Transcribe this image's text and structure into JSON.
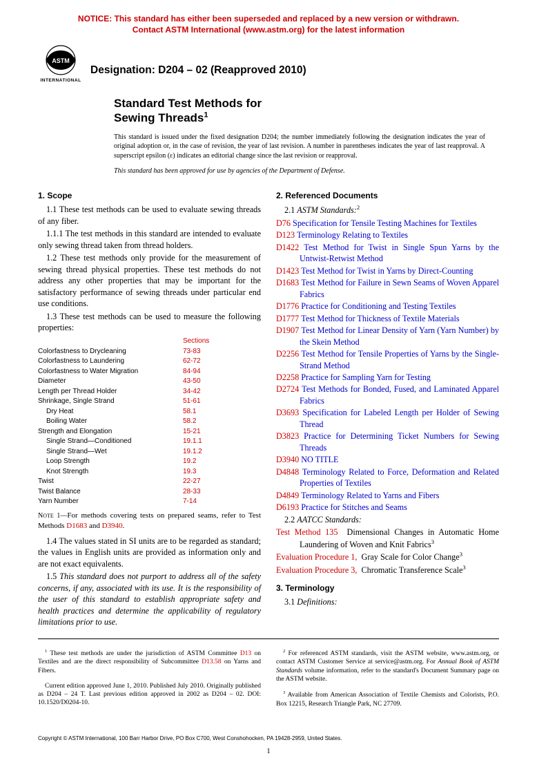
{
  "notice": {
    "line1": "NOTICE: This standard has either been superseded and replaced by a new version or withdrawn.",
    "line2": "Contact ASTM International (www.astm.org) for the latest information"
  },
  "designation": "Designation: D204 – 02 (Reapproved 2010)",
  "title_line1": "Standard Test Methods for",
  "title_line2": "Sewing Threads",
  "title_sup": "1",
  "issued": "This standard is issued under the fixed designation D204; the number immediately following the designation indicates the year of original adoption or, in the case of revision, the year of last revision. A number in parentheses indicates the year of last reapproval. A superscript epsilon (ε) indicates an editorial change since the last revision or reapproval.",
  "approval": "This standard has been approved for use by agencies of the Department of Defense.",
  "s1": {
    "head": "1. Scope",
    "p11": "1.1 These test methods can be used to evaluate sewing threads of any fiber.",
    "p111": "1.1.1 The test methods in this standard are intended to evaluate only sewing thread taken from thread holders.",
    "p12": "1.2 These test methods only provide for the measurement of sewing thread physical properties. These test methods do not address any other properties that may be important for the satisfactory performance of sewing threads under particular end use conditions.",
    "p13": "1.3 These test methods can be used to measure the following properties:",
    "sections_label": "Sections",
    "props": [
      {
        "name": "Colorfastness to Drycleaning",
        "sec": "73-83",
        "ind": 0
      },
      {
        "name": "Colorfastness to Laundering",
        "sec": "62-72",
        "ind": 0
      },
      {
        "name": "Colorfastness to Water Migration",
        "sec": "84-94",
        "ind": 0
      },
      {
        "name": "Diameter",
        "sec": "43-50",
        "ind": 0
      },
      {
        "name": "Length per Thread Holder",
        "sec": "34-42",
        "ind": 0
      },
      {
        "name": "Shrinkage, Single Strand",
        "sec": "51-61",
        "ind": 0
      },
      {
        "name": "Dry Heat",
        "sec": "58.1",
        "ind": 1
      },
      {
        "name": "Boiling Water",
        "sec": "58.2",
        "ind": 1
      },
      {
        "name": "Strength and Elongation",
        "sec": "15-21",
        "ind": 0
      },
      {
        "name": "Single Strand—Conditioned",
        "sec": "19.1.1",
        "ind": 1
      },
      {
        "name": "Single Strand—Wet",
        "sec": "19.1.2",
        "ind": 1
      },
      {
        "name": "Loop Strength",
        "sec": "19.2",
        "ind": 1
      },
      {
        "name": "Knot Strength",
        "sec": "19.3",
        "ind": 1
      },
      {
        "name": "Twist",
        "sec": "22-27",
        "ind": 0
      },
      {
        "name": "Twist Balance",
        "sec": "28-33",
        "ind": 0
      },
      {
        "name": "Yarn Number",
        "sec": "7-14",
        "ind": 0
      }
    ],
    "note1_lead": "Note 1—",
    "note1_a": "For methods covering tests on prepared seams, refer to Test Methods ",
    "note1_l1": "D1683",
    "note1_and": " and ",
    "note1_l2": "D3940",
    "note1_end": ".",
    "p14": "1.4 The values stated in SI units are to be regarded as standard; the values in English units are provided as information only and are not exact equivalents.",
    "p15": "1.5 This standard does not purport to address all of the safety concerns, if any, associated with its use. It is the responsibility of the user of this standard to establish appropriate safety and health practices and determine the applicability of regulatory limitations prior to use."
  },
  "s2": {
    "head": "2. Referenced Documents",
    "astm_label_num": "2.1 ",
    "astm_label": "ASTM Standards:",
    "astm_sup": "2",
    "refs": [
      {
        "c": "D76",
        "t": "Specification for Tensile Testing Machines for Textiles"
      },
      {
        "c": "D123",
        "t": "Terminology Relating to Textiles"
      },
      {
        "c": "D1422",
        "t": "Test Method for Twist in Single Spun Yarns by the Untwist-Retwist Method"
      },
      {
        "c": "D1423",
        "t": "Test Method for Twist in Yarns by Direct-Counting"
      },
      {
        "c": "D1683",
        "t": "Test Method for Failure in Sewn Seams of Woven Apparel Fabrics"
      },
      {
        "c": "D1776",
        "t": "Practice for Conditioning and Testing Textiles"
      },
      {
        "c": "D1777",
        "t": "Test Method for Thickness of Textile Materials"
      },
      {
        "c": "D1907",
        "t": "Test Method for Linear Density of Yarn (Yarn Number) by the Skein Method"
      },
      {
        "c": "D2256",
        "t": "Test Method for Tensile Properties of Yarns by the Single-Strand Method"
      },
      {
        "c": "D2258",
        "t": "Practice for Sampling Yarn for Testing"
      },
      {
        "c": "D2724",
        "t": "Test Methods for Bonded, Fused, and Laminated Apparel Fabrics"
      },
      {
        "c": "D3693",
        "t": "Specification for Labeled Length per Holder of Sewing Thread"
      },
      {
        "c": "D3823",
        "t": "Practice for Determining Ticket Numbers for Sewing Threads"
      },
      {
        "c": "D3940",
        "t": "NO TITLE"
      },
      {
        "c": "D4848",
        "t": "Terminology Related to Force, Deformation and Related Properties of Textiles"
      },
      {
        "c": "D4849",
        "t": "Terminology Related to Yarns and Fibers"
      },
      {
        "c": "D6193",
        "t": "Practice for Stitches and Seams"
      }
    ],
    "aatcc_label_num": "2.2 ",
    "aatcc_label": "AATCC Standards:",
    "aatcc": [
      {
        "c": "Test Method 135",
        "t": "Dimensional Changes in Automatic Home Laundering of Woven and Knit Fabrics",
        "sup": "3"
      },
      {
        "c": "Evaluation Procedure 1,",
        "t": "Gray Scale for Color Change",
        "sup": "3"
      },
      {
        "c": "Evaluation Procedure 3,",
        "t": "Chromatic Transference Scale",
        "sup": "3"
      }
    ]
  },
  "s3": {
    "head": "3. Terminology",
    "p31_num": "3.1 ",
    "p31": "Definitions:"
  },
  "fn": {
    "f1a": " These test methods are under the jurisdiction of ASTM Committee ",
    "f1_l1": "D13",
    "f1b": " on Textiles and are the direct responsibility of Subcommittee ",
    "f1_l2": "D13.58",
    "f1c": " on Yarns and Fibers.",
    "f1d": "Current edition approved June 1, 2010. Published July 2010. Originally published as D204 – 24 T. Last previous edition approved in 2002 as D204 – 02. DOI: 10.1520/D0204-10.",
    "f2a": " For referenced ASTM standards, visit the ASTM website, www.astm.org, or contact ASTM Customer Service at service@astm.org. For ",
    "f2b": "Annual Book of ASTM Standards",
    "f2c": " volume information, refer to the standard's Document Summary page on the ASTM website.",
    "f3": " Available from American Association of Textile Chemists and Colorists, P.O. Box 12215, Research Triangle Park, NC 27709."
  },
  "copyright": "Copyright © ASTM International, 100 Barr Harbor Drive, PO Box C700, West Conshohocken, PA 19428-2959, United States.",
  "pagenum": "1",
  "colors": {
    "red": "#cc0000",
    "blue": "#0000cc",
    "black": "#000000"
  }
}
